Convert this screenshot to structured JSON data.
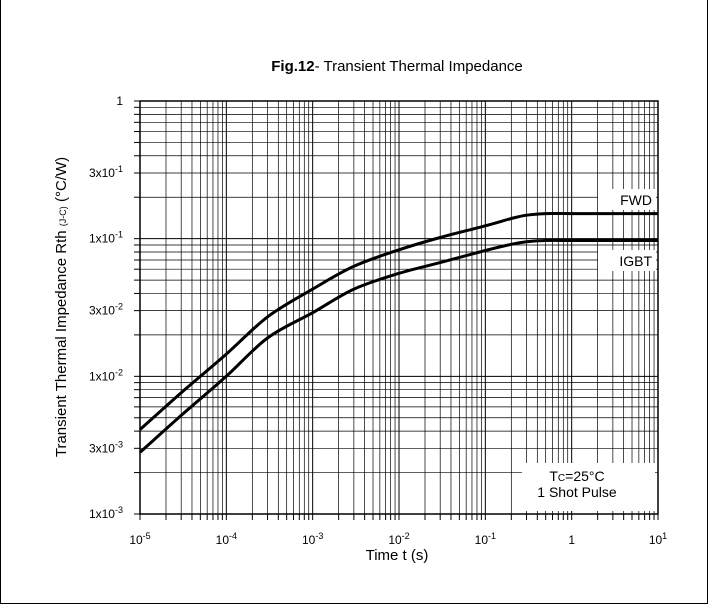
{
  "chart_data": {
    "type": "line",
    "title_bold": "Fig.12",
    "title_rest": "- Transient Thermal Impedance",
    "xlabel": "Time t (s)",
    "ylabel_main": "Transient Thermal Impedance  Rth",
    "ylabel_sub": "(J-C)",
    "ylabel_unit": "(°C/W)",
    "x_scale": "log",
    "y_scale": "log",
    "xlim": [
      1e-05,
      10
    ],
    "ylim": [
      0.001,
      1
    ],
    "grid": true,
    "x_ticks": [
      {
        "value": 1e-05,
        "base": "10",
        "exp": "-5"
      },
      {
        "value": 0.0001,
        "base": "10",
        "exp": "-4"
      },
      {
        "value": 0.001,
        "base": "10",
        "exp": "-3"
      },
      {
        "value": 0.01,
        "base": "10",
        "exp": "-2"
      },
      {
        "value": 0.1,
        "base": "10",
        "exp": "-1"
      },
      {
        "value": 1,
        "base": "1",
        "exp": ""
      },
      {
        "value": 10,
        "base": "10",
        "exp": "1"
      }
    ],
    "y_ticks": [
      {
        "value": 1,
        "base": "1",
        "exp": ""
      },
      {
        "value": 0.3,
        "base": "3x10",
        "exp": "-1"
      },
      {
        "value": 0.1,
        "base": "1x10",
        "exp": "-1"
      },
      {
        "value": 0.03,
        "base": "3x10",
        "exp": "-2"
      },
      {
        "value": 0.01,
        "base": "1x10",
        "exp": "-2"
      },
      {
        "value": 0.003,
        "base": "3x10",
        "exp": "-3"
      },
      {
        "value": 0.001,
        "base": "1x10",
        "exp": "-3"
      }
    ],
    "series": [
      {
        "name": "FWD",
        "x": [
          1e-05,
          3e-05,
          0.0001,
          0.0003,
          0.001,
          0.003,
          0.01,
          0.03,
          0.1,
          0.2,
          0.3,
          0.5,
          1,
          3,
          10
        ],
        "y": [
          0.0041,
          0.0076,
          0.0145,
          0.027,
          0.043,
          0.063,
          0.083,
          0.102,
          0.124,
          0.14,
          0.148,
          0.152,
          0.152,
          0.152,
          0.152
        ]
      },
      {
        "name": "IGBT",
        "x": [
          1e-05,
          3e-05,
          0.0001,
          0.0003,
          0.001,
          0.003,
          0.01,
          0.03,
          0.1,
          0.2,
          0.3,
          0.5,
          1,
          3,
          10
        ],
        "y": [
          0.0028,
          0.0052,
          0.01,
          0.019,
          0.029,
          0.043,
          0.056,
          0.067,
          0.082,
          0.091,
          0.095,
          0.097,
          0.097,
          0.097,
          0.097
        ]
      }
    ],
    "annotation_line1_base": "T",
    "annotation_line1_sub": "C",
    "annotation_line1_rest": "=25°C",
    "annotation_line2": "1 Shot Pulse"
  }
}
